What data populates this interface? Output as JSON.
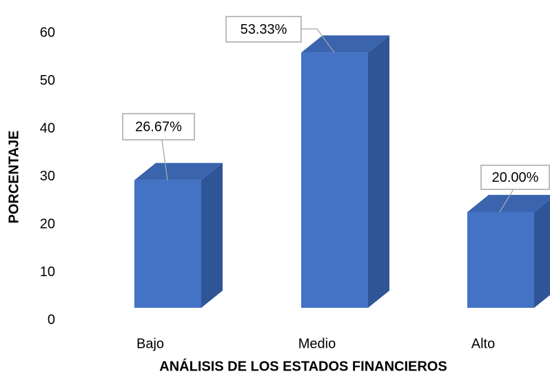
{
  "chart_data": {
    "type": "bar3d",
    "x_label": "ANÁLISIS DE LOS ESTADOS FINANCIEROS",
    "y_label": "PORCENTAJE",
    "categories": [
      "Bajo",
      "Medio",
      "Alto"
    ],
    "values": [
      26.67,
      53.33,
      20.0
    ],
    "value_labels": [
      "26.67%",
      "53.33%",
      "20.00%"
    ],
    "color": "#4472c4",
    "ylim": [
      0,
      60
    ],
    "yticks": [
      0,
      10,
      20,
      30,
      40,
      50,
      60
    ],
    "grid": false
  }
}
